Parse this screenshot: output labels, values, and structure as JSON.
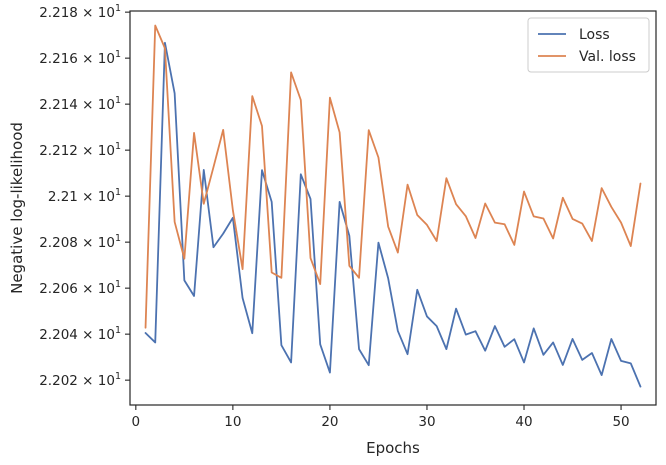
{
  "chart_data": {
    "type": "line",
    "title": "",
    "xlabel": "Epochs",
    "ylabel": "Negative log-likelihood",
    "xlim": [
      -0.6,
      53.6
    ],
    "ylim": [
      22.0092,
      22.1805
    ],
    "x_ticks": [
      0,
      10,
      20,
      30,
      40,
      50
    ],
    "y_ticks": [
      {
        "value": 22.02,
        "mantissa": "2.202"
      },
      {
        "value": 22.04,
        "mantissa": "2.204"
      },
      {
        "value": 22.06,
        "mantissa": "2.206"
      },
      {
        "value": 22.08,
        "mantissa": "2.208"
      },
      {
        "value": 22.1,
        "mantissa": "2.21"
      },
      {
        "value": 22.12,
        "mantissa": "2.212"
      },
      {
        "value": 22.14,
        "mantissa": "2.214"
      },
      {
        "value": 22.16,
        "mantissa": "2.216"
      },
      {
        "value": 22.18,
        "mantissa": "2.218"
      }
    ],
    "y_tick_base": "10",
    "y_tick_exponent": "1",
    "grid": false,
    "legend_position": "top-right",
    "x": [
      1,
      2,
      3,
      4,
      5,
      6,
      7,
      8,
      9,
      10,
      11,
      12,
      13,
      14,
      15,
      16,
      17,
      18,
      19,
      20,
      21,
      22,
      23,
      24,
      25,
      26,
      27,
      28,
      29,
      30,
      31,
      32,
      33,
      34,
      35,
      36,
      37,
      38,
      39,
      40,
      41,
      42,
      43,
      44,
      45,
      46,
      47,
      48,
      49,
      50,
      51,
      52
    ],
    "series": [
      {
        "name": "Loss",
        "color": "#4c72b0",
        "values": [
          22.0405,
          22.0364,
          22.1667,
          22.1447,
          22.0634,
          22.0566,
          22.1114,
          22.0778,
          22.0837,
          22.0906,
          22.0557,
          22.0404,
          22.1113,
          22.0975,
          22.0352,
          22.0277,
          22.1095,
          22.0988,
          22.0356,
          22.0233,
          22.0975,
          22.0828,
          22.0335,
          22.0265,
          22.0798,
          22.0643,
          22.0414,
          22.0313,
          22.0593,
          22.0477,
          22.0435,
          22.0335,
          22.0511,
          22.0398,
          22.0413,
          22.0328,
          22.0435,
          22.0345,
          22.0378,
          22.0277,
          22.0425,
          22.031,
          22.0364,
          22.0266,
          22.0379,
          22.0288,
          22.0318,
          22.0222,
          22.0379,
          22.0284,
          22.0273,
          22.0172
        ]
      },
      {
        "name": "Val. loss",
        "color": "#dd8452",
        "values": [
          22.0428,
          22.1742,
          22.1643,
          22.0888,
          22.0728,
          22.1275,
          22.0967,
          22.1126,
          22.1288,
          22.0939,
          22.0683,
          22.1435,
          22.1305,
          22.0668,
          22.0645,
          22.1538,
          22.1418,
          22.0731,
          22.0618,
          22.1428,
          22.1277,
          22.0697,
          22.0645,
          22.1287,
          22.1168,
          22.0868,
          22.0755,
          22.105,
          22.0918,
          22.0875,
          22.0805,
          22.1078,
          22.0965,
          22.0913,
          22.0818,
          22.0968,
          22.0885,
          22.0878,
          22.0788,
          22.102,
          22.0912,
          22.0903,
          22.0816,
          22.0993,
          22.0901,
          22.0881,
          22.0805,
          22.1035,
          22.0953,
          22.0885,
          22.0783,
          22.1055
        ]
      }
    ]
  }
}
